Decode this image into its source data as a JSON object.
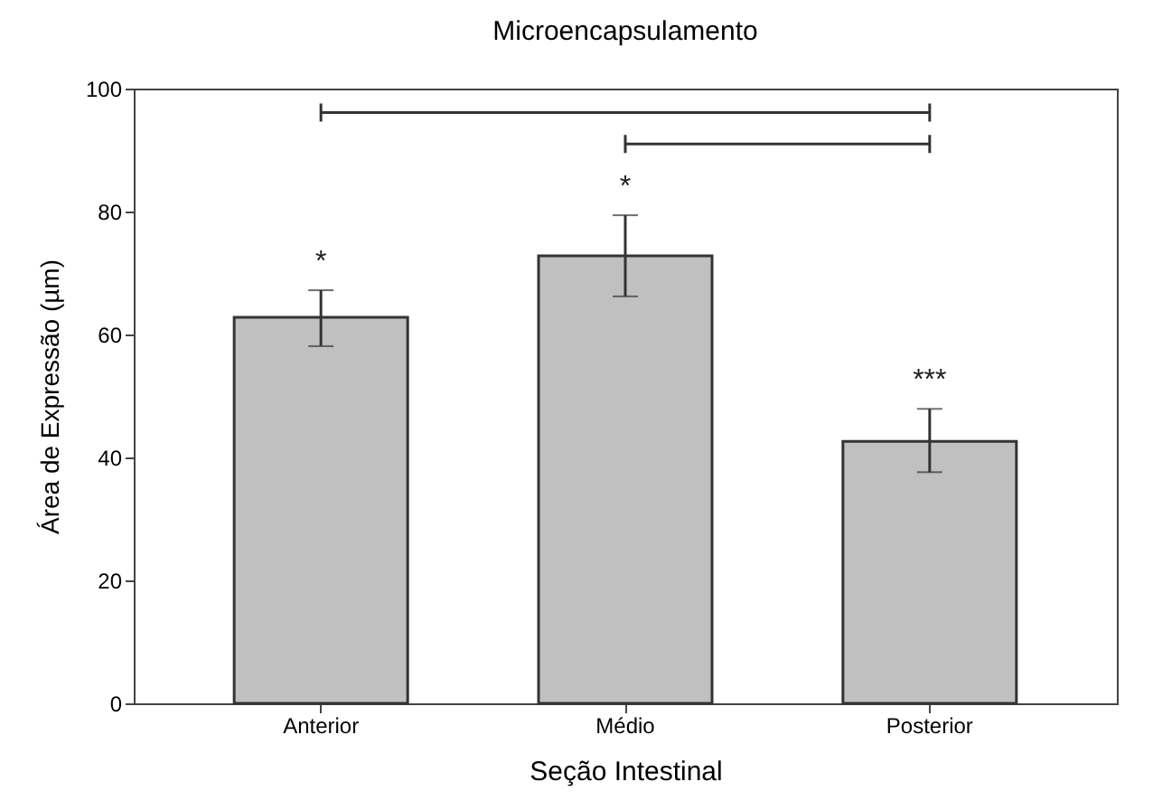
{
  "chart_data": {
    "type": "bar",
    "title": "Microencapsulamento",
    "xlabel": "Seção Intestinal",
    "ylabel": "Área de Expressão (µm)",
    "categories": [
      "Anterior",
      "Médio",
      "Posterior"
    ],
    "values": [
      62.8,
      72.8,
      42.6
    ],
    "color": "#c0c0c0",
    "errors": [
      [
        58.1,
        67.2
      ],
      [
        66.2,
        79.4
      ],
      [
        37.6,
        47.9
      ]
    ],
    "ylim": [
      0,
      100
    ],
    "yticks": [
      0,
      20,
      40,
      60,
      80,
      100
    ],
    "grid": false,
    "annotations": [
      "*",
      "*",
      "***"
    ]
  }
}
